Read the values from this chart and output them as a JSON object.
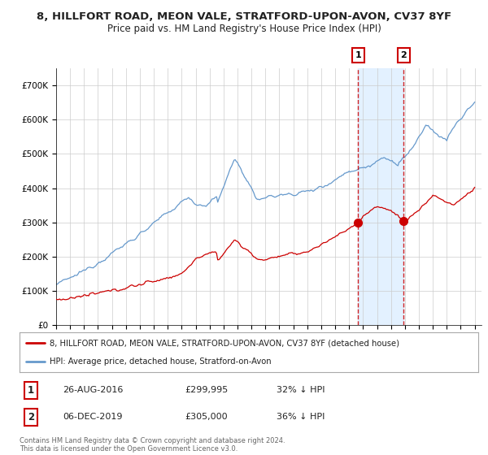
{
  "title_line1": "8, HILLFORT ROAD, MEON VALE, STRATFORD-UPON-AVON, CV37 8YF",
  "title_line2": "Price paid vs. HM Land Registry's House Price Index (HPI)",
  "legend_red": "8, HILLFORT ROAD, MEON VALE, STRATFORD-UPON-AVON, CV37 8YF (detached house)",
  "legend_blue": "HPI: Average price, detached house, Stratford-on-Avon",
  "transaction1_date": "26-AUG-2016",
  "transaction1_price": 299995,
  "transaction1_label": "1",
  "transaction1_pct": "32% ↓ HPI",
  "transaction2_date": "06-DEC-2019",
  "transaction2_price": 305000,
  "transaction2_label": "2",
  "transaction2_pct": "36% ↓ HPI",
  "footer": "Contains HM Land Registry data © Crown copyright and database right 2024.\nThis data is licensed under the Open Government Licence v3.0.",
  "ylim_min": 0,
  "ylim_max": 750000,
  "red_color": "#cc0000",
  "blue_color": "#6699cc",
  "span_color": "#ddeeff",
  "transaction1_x": 2016.65,
  "transaction2_x": 2019.92,
  "bg_color": "#ffffff",
  "grid_color": "#cccccc"
}
